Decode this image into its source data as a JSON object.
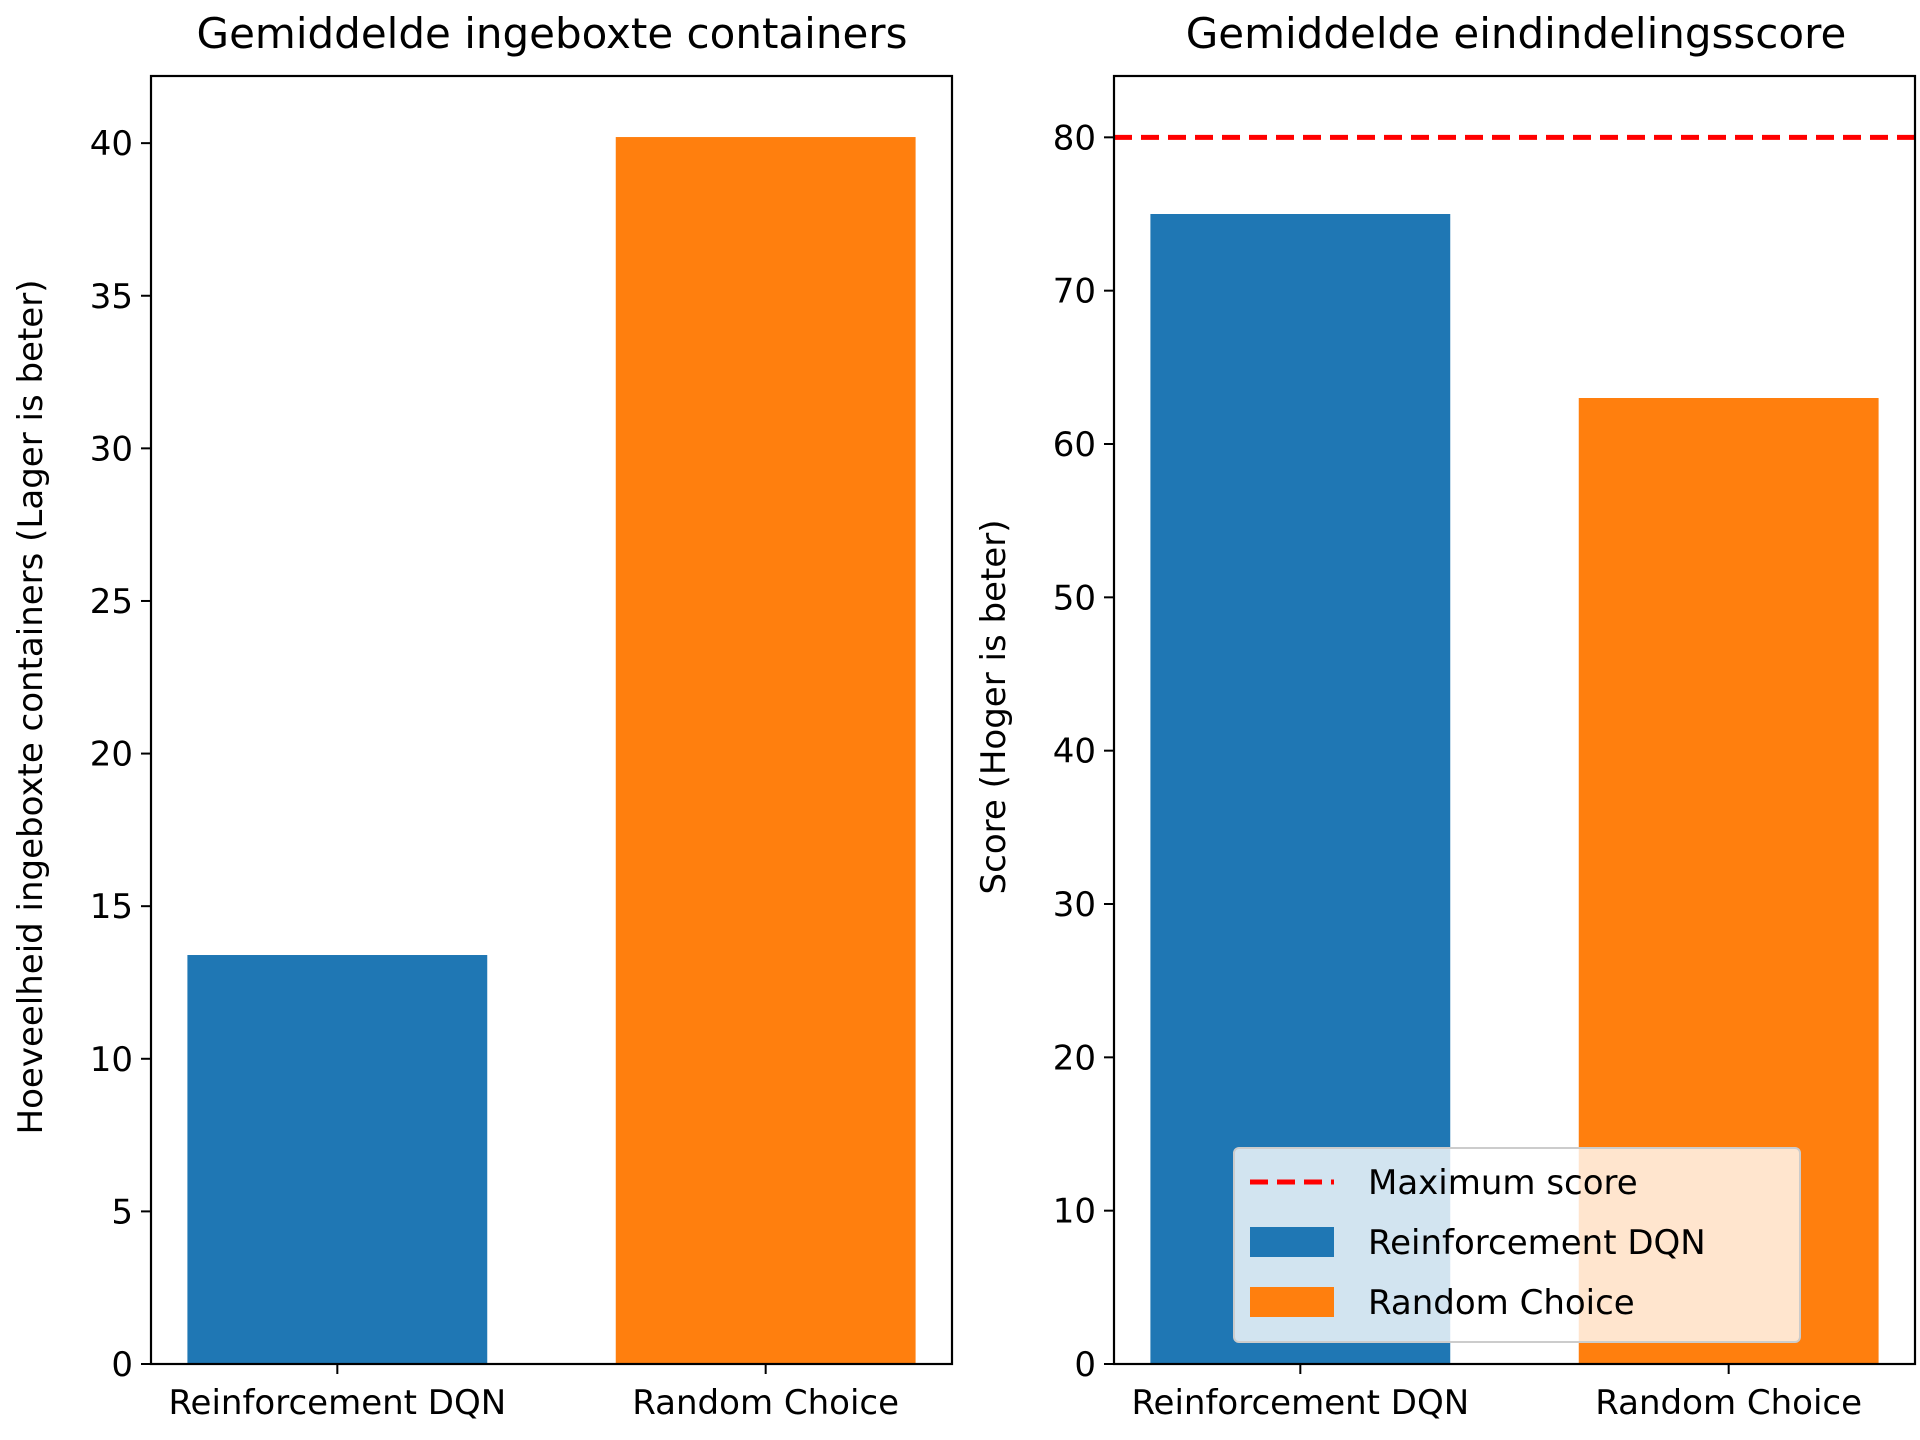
{
  "chart_data": [
    {
      "type": "bar",
      "title": "Gemiddelde ingeboxte containers",
      "xlabel": "",
      "ylabel": "Hoeveelheid ingeboxte containers (Lager is beter)",
      "categories": [
        "Reinforcement DQN",
        "Random Choice"
      ],
      "values": [
        13.4,
        40.2
      ],
      "colors": [
        "#1f77b4",
        "#ff7f0e"
      ],
      "ylim": [
        0,
        42.2
      ],
      "yticks": [
        0,
        5,
        10,
        15,
        20,
        25,
        30,
        35,
        40
      ],
      "grid": false
    },
    {
      "type": "bar",
      "title": "Gemiddelde eindindelingsscore",
      "xlabel": "",
      "ylabel": "Score (Hoger is beter)",
      "categories": [
        "Reinforcement DQN",
        "Random Choice"
      ],
      "values": [
        75,
        63
      ],
      "colors": [
        "#1f77b4",
        "#ff7f0e"
      ],
      "ylim": [
        0,
        84
      ],
      "yticks": [
        0,
        10,
        20,
        30,
        40,
        50,
        60,
        70,
        80
      ],
      "grid": false,
      "reference_line": {
        "name": "Maximum score",
        "value": 80,
        "color": "#ff0000",
        "style": "dashed"
      },
      "legend": {
        "position": "lower-right",
        "entries": [
          {
            "label": "Maximum score",
            "kind": "line",
            "color": "#ff0000"
          },
          {
            "label": "Reinforcement DQN",
            "kind": "patch",
            "color": "#1f77b4"
          },
          {
            "label": "Random Choice",
            "kind": "patch",
            "color": "#ff7f0e"
          }
        ]
      }
    }
  ]
}
